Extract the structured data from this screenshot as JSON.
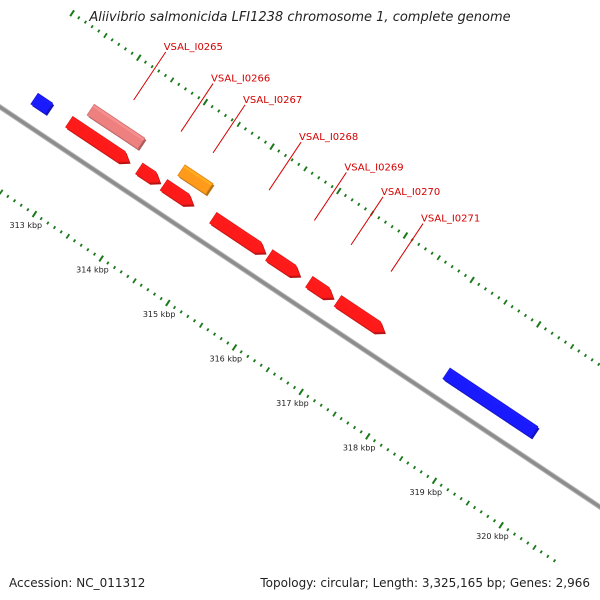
{
  "title": "Aliivibrio salmonicida LFI1238 chromosome 1, complete genome",
  "footer": {
    "accession": "Accession: NC_011312",
    "topology": "Topology: circular; Length: 3,325,165 bp; Genes: 2,966"
  },
  "colors": {
    "backbone": "#8c8c8c",
    "gene_red": "#ff1a1a",
    "gene_pink": "#ee8080",
    "gene_orange": "#ff9a1a",
    "gene_blue": "#1a1aff",
    "tick_green": "#1a7a1a",
    "label_red": "#d40000"
  },
  "genes": [
    {
      "label": "VSAL_I0265",
      "track": "outer",
      "start": 312.86,
      "end": 313.62,
      "color": "gene_pink",
      "strand": "-"
    },
    {
      "label": "",
      "track": "inner",
      "start": 312.72,
      "end": 313.62,
      "color": "gene_red",
      "strand": "+"
    },
    {
      "label": "VSAL_I0266",
      "track": "inner",
      "start": 313.77,
      "end": 314.08,
      "color": "gene_red",
      "strand": "+"
    },
    {
      "label": "",
      "track": "inner",
      "start": 314.14,
      "end": 314.58,
      "color": "gene_red",
      "strand": "+"
    },
    {
      "label": "VSAL_I0267",
      "track": "outer",
      "start": 314.22,
      "end": 314.64,
      "color": "gene_orange",
      "strand": "-"
    },
    {
      "label": "VSAL_I0268",
      "track": "inner",
      "start": 314.88,
      "end": 315.66,
      "color": "gene_red",
      "strand": "+"
    },
    {
      "label": "VSAL_I0269",
      "track": "inner",
      "start": 315.72,
      "end": 316.18,
      "color": "gene_red",
      "strand": "+"
    },
    {
      "label": "VSAL_I0270",
      "track": "inner",
      "start": 316.32,
      "end": 316.68,
      "color": "gene_red",
      "strand": "+"
    },
    {
      "label": "VSAL_I0271",
      "track": "inner",
      "start": 316.75,
      "end": 317.45,
      "color": "gene_red",
      "strand": "+"
    },
    {
      "label": "",
      "track": "inner",
      "start": 312.2,
      "end": 312.42,
      "color": "gene_blue",
      "strand": "-"
    },
    {
      "label": "",
      "track": "inner",
      "start": 318.38,
      "end": 319.7,
      "color": "gene_blue",
      "strand": "-"
    }
  ],
  "ticks": [
    {
      "label": "313 kbp",
      "pos": 313
    },
    {
      "label": "314 kbp",
      "pos": 314
    },
    {
      "label": "315 kbp",
      "pos": 315
    },
    {
      "label": "316 kbp",
      "pos": 316
    },
    {
      "label": "317 kbp",
      "pos": 317
    },
    {
      "label": "318 kbp",
      "pos": 318
    },
    {
      "label": "319 kbp",
      "pos": 319
    },
    {
      "label": "320 kbp",
      "pos": 320
    }
  ]
}
